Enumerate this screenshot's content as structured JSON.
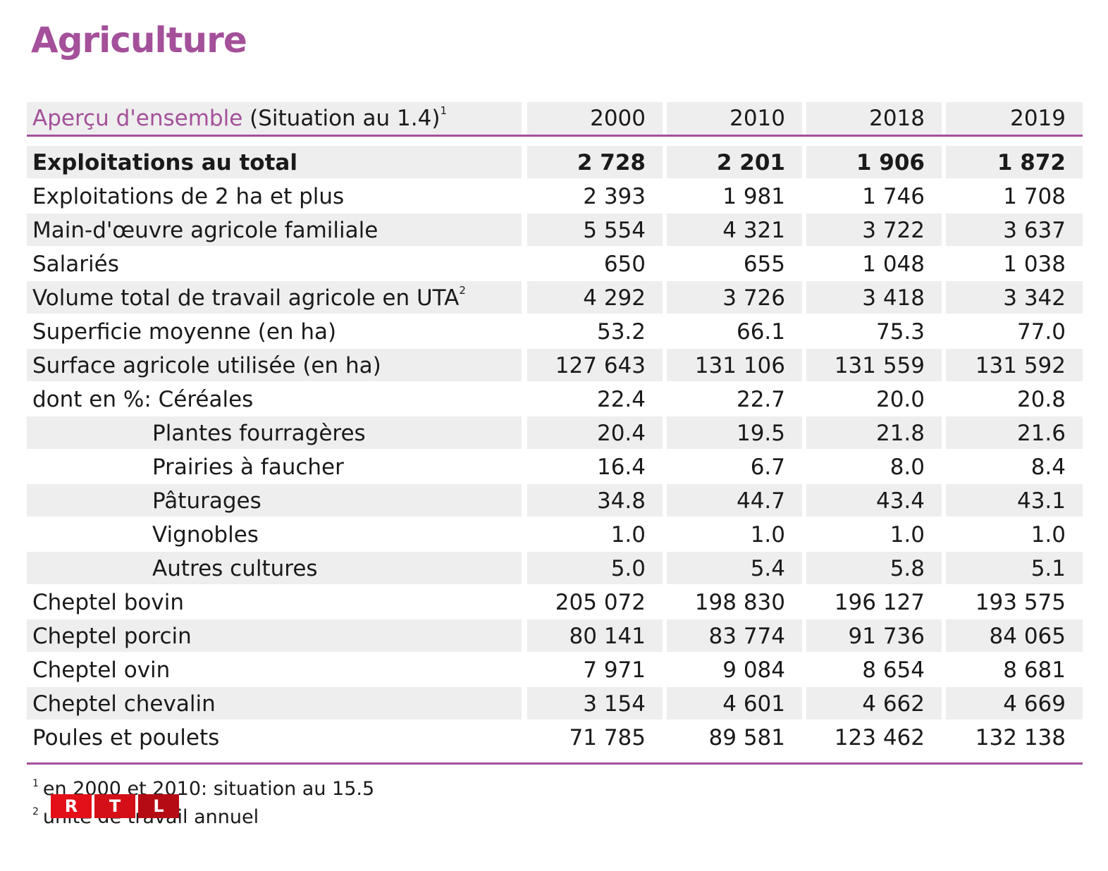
{
  "title": "Agriculture",
  "header": {
    "label_accent": "Aperçu d'ensemble",
    "label_rest": "(Situation au 1.4)",
    "label_sup": "1",
    "years": [
      "2000",
      "2010",
      "2018",
      "2019"
    ]
  },
  "rows": [
    {
      "label": "Exploitations au total",
      "values": [
        "2 728",
        "2 201",
        "1 906",
        "1 872"
      ]
    },
    {
      "label": "Exploitations de 2 ha et plus",
      "values": [
        "2 393",
        "1 981",
        "1 746",
        "1 708"
      ]
    },
    {
      "label": "Main-d'œuvre agricole familiale",
      "values": [
        "5 554",
        "4 321",
        "3 722",
        "3 637"
      ]
    },
    {
      "label": "Salariés",
      "values": [
        "650",
        "655",
        "1 048",
        "1 038"
      ]
    },
    {
      "label": "Volume total de travail agricole en UTA",
      "sup": "2",
      "values": [
        "4 292",
        "3 726",
        "3 418",
        "3 342"
      ]
    },
    {
      "label": "Superficie moyenne (en ha)",
      "values": [
        "53.2",
        "66.1",
        "75.3",
        "77.0"
      ]
    },
    {
      "label": "Surface agricole utilisée (en ha)",
      "values": [
        "127 643",
        "131 106",
        "131 559",
        "131 592"
      ]
    },
    {
      "label": "dont en %: Céréales",
      "values": [
        "22.4",
        "22.7",
        "20.0",
        "20.8"
      ]
    },
    {
      "label": "Plantes fourragères",
      "values": [
        "20.4",
        "19.5",
        "21.8",
        "21.6"
      ]
    },
    {
      "label": "Prairies à faucher",
      "values": [
        "16.4",
        "6.7",
        "8.0",
        "8.4"
      ]
    },
    {
      "label": "Pâturages",
      "values": [
        "34.8",
        "44.7",
        "43.4",
        "43.1"
      ]
    },
    {
      "label": "Vignobles",
      "values": [
        "1.0",
        "1.0",
        "1.0",
        "1.0"
      ]
    },
    {
      "label": "Autres cultures",
      "values": [
        "5.0",
        "5.4",
        "5.8",
        "5.1"
      ]
    },
    {
      "label": "Cheptel bovin",
      "values": [
        "205 072",
        "198 830",
        "196 127",
        "193 575"
      ]
    },
    {
      "label": "Cheptel porcin",
      "values": [
        "80 141",
        "83 774",
        "91 736",
        "84 065"
      ]
    },
    {
      "label": "Cheptel ovin",
      "values": [
        "7 971",
        "9 084",
        "8 654",
        "8 681"
      ]
    },
    {
      "label": "Cheptel chevalin",
      "values": [
        "3 154",
        "4 601",
        "4 662",
        "4 669"
      ]
    },
    {
      "label": "Poules et poulets",
      "values": [
        "71 785",
        "89 581",
        "123 462",
        "132 138"
      ]
    }
  ],
  "footnotes": [
    {
      "mark": "1",
      "text": "en 2000 et 2010: situation au 15.5"
    },
    {
      "mark": "2",
      "text": "unité de travail annuel"
    }
  ],
  "logo": {
    "letters": [
      "R",
      "T",
      "L"
    ]
  },
  "colors": {
    "accent": "#a4509a",
    "shade": "#eeeeee",
    "logo_red": "#e3101a"
  }
}
